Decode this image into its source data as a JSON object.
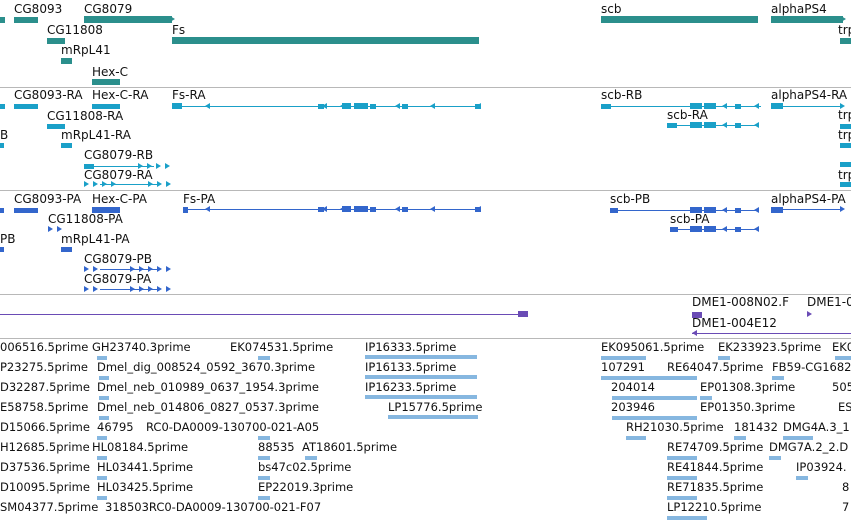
{
  "colors": {
    "gene": "#2b8f8c",
    "transcript": "#1aa0c8",
    "protein": "#3366cc",
    "purple": "#6a4bb5",
    "est": "#86b7e0",
    "border": "#b8b8b8"
  },
  "tracks": [
    {
      "name": "gene-track"
    },
    {
      "name": "transcript-track"
    },
    {
      "name": "protein-track"
    },
    {
      "name": "clone-track"
    },
    {
      "name": "est-track"
    }
  ],
  "labels": {
    "gene": [
      "CG8093",
      "CG8079",
      "CG11808",
      "mRpL41",
      "Hex-C",
      "Fs",
      "scb",
      "alphaPS4",
      "trp"
    ],
    "transcript": [
      "CG8093-RA",
      "Hex-C-RA",
      "Fs-RA",
      "CG11808-RA",
      "mRpL41-RA",
      "CG8079-RB",
      "CG8079-RA",
      "scb-RB",
      "scb-RA",
      "alphaPS4-RA",
      "B",
      "trp",
      "trp",
      "trp"
    ],
    "protein": [
      "CG8093-PA",
      "Hex-C-PA",
      "Fs-PA",
      "CG11808-PA",
      "mRpL41-PA",
      "CG8079-PB",
      "CG8079-PA",
      "scb-PB",
      "scb-PA",
      "alphaPS4-PA",
      "PB"
    ],
    "clone": [
      "DME1-008N02.F",
      "DME1-004E12",
      "DME1-0"
    ],
    "est": [
      "006516.5prime",
      "GH23740.3prime",
      "EK074531.5prime",
      "IP16333.5prime",
      "EK095061.5prime",
      "EK233923.5prime",
      "EK0",
      "P23275.5prime",
      "Dmel_dig_008524_0592_3670.3prime",
      "IP16133.5prime",
      "107291",
      "RE64047.5prime",
      "FB59-CG1682",
      "D32287.5prime",
      "Dmel_neb_010989_0637_1954.3prime",
      "IP16233.5prime",
      "204014",
      "EP01308.3prime",
      "505",
      "E58758.5prime",
      "Dmel_neb_014806_0827_0537.3prime",
      "LP15776.5prime",
      "203946",
      "EP01350.3prime",
      "ES",
      "D15066.5prime",
      "46795",
      "RC0-DA0009-130700-021-A05",
      "RH21030.5prime",
      "181432",
      "DMG4A.3_1",
      "H12685.5prime",
      "HL08184.5prime",
      "88535",
      "AT18601.5prime",
      "RE74709.5prime",
      "DMG7A.2_2.D",
      "D37536.5prime",
      "HL03441.5prime",
      "bs47c02.5prime",
      "RE41844.5prime",
      "IP03924.",
      "D10095.5prime",
      "HL03425.5prime",
      "EP22019.3prime",
      "RE71835.5prime",
      "8",
      "SM04377.5prime",
      "318503RC0-DA0009-130700-021-F07",
      "LP12210.5prime",
      "7"
    ]
  }
}
